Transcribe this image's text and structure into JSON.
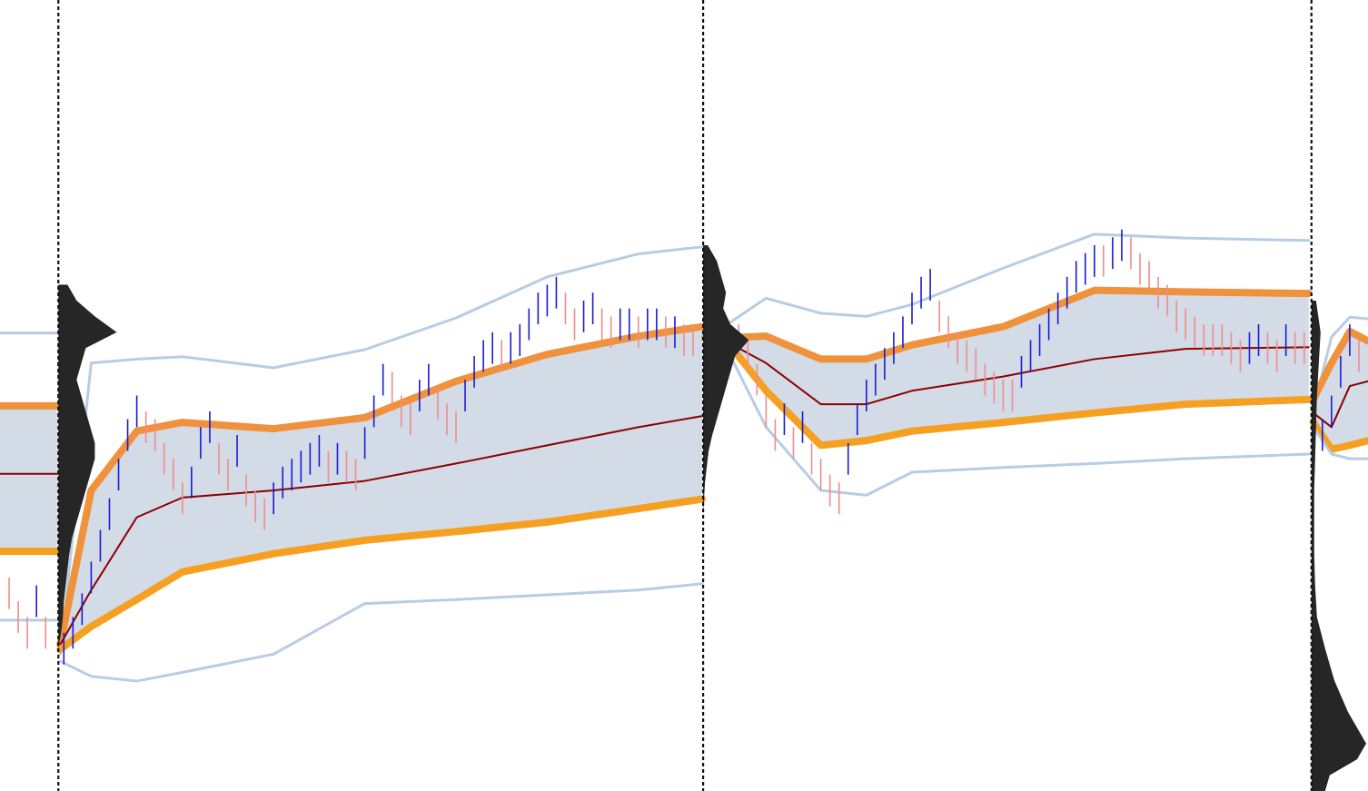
{
  "chart_data": {
    "type": "band",
    "xlim": [
      0,
      150
    ],
    "ylim": [
      0,
      100
    ],
    "session_breaks": [
      6.4,
      77.1,
      143.8
    ],
    "x": [
      0,
      6.3,
      6.4,
      6.6,
      10,
      15,
      20,
      30,
      40,
      50,
      60,
      70,
      77,
      77.1,
      77.3,
      80,
      84,
      90,
      95,
      100,
      110,
      120,
      130,
      143.5,
      143.8,
      144,
      146,
      148,
      150
    ],
    "fill_color": "#d3dbe6",
    "series": [
      {
        "color": "#b8cce4",
        "width": 3,
        "values": [
          57.9,
          57.9,
          null,
          17.3,
          54.1,
          54.6,
          54.9,
          53.5,
          55.8,
          59.8,
          65,
          67.9,
          68.8,
          null,
          58.7,
          59.2,
          62.3,
          60.4,
          60,
          61.5,
          66.1,
          70.4,
          69.9,
          69.6,
          null,
          48.2,
          57.4,
          59.9,
          59.7
        ]
      },
      {
        "color": "#f0913c",
        "width": 8,
        "values": [
          48.7,
          48.7,
          null,
          18.5,
          38,
          45.5,
          46.6,
          45.8,
          47.2,
          51.8,
          55.2,
          57.5,
          58.7,
          null,
          57.3,
          57.3,
          57.5,
          54.6,
          54.6,
          56.4,
          58.7,
          63.3,
          63.1,
          62.9,
          null,
          49.5,
          54.1,
          58.1,
          56.9
        ]
      },
      {
        "color": "#8b0000",
        "width": 2,
        "values": [
          40.1,
          40.1,
          null,
          18.5,
          25.4,
          34.6,
          37.1,
          38,
          39.2,
          41.4,
          43.7,
          46,
          47.4,
          null,
          57.3,
          56.6,
          54.1,
          48.9,
          48.9,
          50.6,
          52.4,
          54.6,
          55.9,
          56.1,
          null,
          47.8,
          46,
          51.2,
          51.8
        ]
      },
      {
        "color": "#f5a020",
        "width": 8,
        "values": [
          30.3,
          30.3,
          null,
          17.9,
          20.8,
          24.2,
          27.7,
          30,
          31.7,
          32.8,
          34,
          35.7,
          36.9,
          null,
          57.3,
          56.4,
          50.6,
          43.7,
          44.3,
          45.5,
          46.6,
          47.8,
          48.9,
          49.5,
          null,
          46.6,
          43.2,
          43.7,
          44.3
        ]
      },
      {
        "color": "#b8cce4",
        "width": 3,
        "values": [
          21.6,
          21.6,
          null,
          16.4,
          14.5,
          13.9,
          15,
          17.3,
          23.7,
          24.2,
          24.8,
          25.4,
          26.2,
          null,
          57.3,
          55.2,
          46,
          38,
          37.4,
          40.3,
          40.9,
          41.4,
          42,
          42.6,
          null,
          46,
          42.6,
          42,
          42
        ]
      }
    ],
    "price_bars": [
      {
        "color": "#1a1ad6",
        "x": [
          4,
          7,
          8,
          9,
          10,
          11,
          12,
          13,
          14,
          15,
          21,
          22,
          23,
          26,
          30,
          31,
          32,
          33,
          34,
          35,
          37,
          40,
          41,
          42,
          46,
          47,
          51,
          52,
          53,
          54,
          56,
          57,
          58,
          59,
          60,
          61,
          64,
          65,
          68,
          69,
          71,
          72,
          74,
          79,
          86,
          88,
          93,
          94,
          95,
          96,
          97,
          98,
          99,
          100,
          101,
          102,
          112,
          113,
          114,
          115,
          116,
          117,
          118,
          119,
          120,
          122,
          123,
          137,
          138,
          141,
          145,
          146,
          147,
          148
        ],
        "high": [
          26,
          20,
          22,
          25,
          29,
          33,
          37,
          42,
          47,
          50,
          41,
          46,
          48,
          45,
          39,
          41,
          42,
          43,
          44,
          45,
          44,
          46,
          50,
          54,
          52,
          54,
          52,
          55,
          57,
          58,
          58,
          59,
          61,
          63,
          64,
          65,
          62,
          63,
          61,
          61,
          61,
          61,
          60,
          60,
          49,
          48,
          44,
          49,
          52,
          54,
          56,
          58,
          60,
          63,
          65,
          66,
          55,
          57,
          59,
          61,
          63,
          65,
          67,
          68,
          69,
          70,
          71,
          58,
          59,
          59,
          47,
          50,
          55,
          59
        ],
        "low": [
          22,
          16,
          18,
          21,
          25,
          29,
          33,
          38,
          43,
          46,
          37,
          42,
          44,
          41,
          35,
          37,
          38,
          39,
          40,
          41,
          40,
          42,
          46,
          50,
          48,
          50,
          48,
          51,
          53,
          54,
          54,
          55,
          57,
          59,
          60,
          61,
          58,
          59,
          57,
          57,
          57,
          57,
          56,
          56,
          45,
          44,
          40,
          45,
          48,
          50,
          52,
          54,
          56,
          59,
          61,
          62,
          51,
          53,
          55,
          57,
          59,
          61,
          63,
          64,
          65,
          66,
          67,
          54,
          55,
          55,
          43,
          46,
          51,
          55
        ]
      },
      {
        "color": "#f08c8c",
        "x": [
          1,
          2,
          3,
          5,
          16,
          17,
          18,
          19,
          20,
          24,
          25,
          27,
          28,
          29,
          36,
          38,
          39,
          43,
          44,
          45,
          48,
          49,
          50,
          55,
          62,
          63,
          66,
          67,
          70,
          73,
          75,
          76,
          78,
          80,
          81,
          82,
          83,
          84,
          85,
          87,
          89,
          90,
          91,
          92,
          103,
          104,
          105,
          106,
          107,
          108,
          109,
          110,
          111,
          121,
          124,
          125,
          126,
          127,
          128,
          129,
          130,
          131,
          132,
          133,
          134,
          135,
          136,
          139,
          140,
          142,
          143,
          149
        ],
        "high": [
          27,
          24,
          22,
          22,
          48,
          47,
          44,
          42,
          39,
          44,
          42,
          40,
          38,
          37,
          43,
          43,
          42,
          53,
          50,
          49,
          51,
          49,
          48,
          57,
          63,
          61,
          61,
          60,
          60,
          60,
          59,
          59,
          59,
          59,
          59,
          57,
          54,
          50,
          47,
          46,
          44,
          42,
          40,
          39,
          62,
          60,
          58,
          57,
          56,
          54,
          53,
          52,
          52,
          69,
          70,
          68,
          67,
          65,
          64,
          62,
          61,
          60,
          59,
          59,
          59,
          58,
          57,
          58,
          57,
          58,
          58,
          57
        ],
        "low": [
          23,
          20,
          18,
          18,
          44,
          43,
          40,
          38,
          35,
          40,
          38,
          36,
          34,
          33,
          39,
          39,
          38,
          49,
          46,
          45,
          47,
          45,
          44,
          53,
          59,
          57,
          57,
          56,
          56,
          56,
          55,
          55,
          55,
          55,
          55,
          53,
          50,
          46,
          43,
          42,
          40,
          38,
          36,
          35,
          58,
          56,
          54,
          53,
          52,
          50,
          49,
          48,
          48,
          65,
          66,
          64,
          63,
          61,
          60,
          58,
          57,
          56,
          55,
          55,
          55,
          54,
          53,
          54,
          53,
          54,
          54,
          53
        ]
      }
    ],
    "profiles": [
      {
        "x": 6.4,
        "color": "#262626",
        "y": [
          64,
          62,
          60,
          58,
          56,
          54,
          52,
          50,
          48,
          46,
          44,
          42,
          40,
          38,
          36,
          34,
          32,
          30,
          28,
          26,
          24,
          22,
          20,
          18
        ],
        "w": [
          1,
          2,
          4,
          6.4,
          3,
          2.5,
          2,
          2.5,
          3,
          3.5,
          4,
          4,
          3.5,
          3,
          2.5,
          2,
          1.5,
          1.2,
          1,
          0.8,
          0.6,
          0.5,
          0.3,
          0
        ]
      },
      {
        "x": 77.1,
        "color": "#262626",
        "y": [
          69,
          67,
          65,
          63,
          61,
          59,
          57,
          55,
          53,
          51,
          49,
          47,
          45,
          43,
          41,
          39,
          37,
          35
        ],
        "w": [
          0.5,
          1.5,
          2,
          2.5,
          2.2,
          3,
          5,
          3.5,
          3,
          2.5,
          2,
          1.5,
          1,
          0.6,
          0.4,
          0.2,
          0.1,
          0
        ]
      },
      {
        "x": 143.8,
        "color": "#262626",
        "y": [
          62,
          58,
          54,
          50,
          46,
          42,
          38,
          34,
          30,
          26,
          22,
          18,
          14,
          10,
          6,
          4,
          2,
          0
        ],
        "w": [
          0.5,
          1,
          0.8,
          0.6,
          0.5,
          0.4,
          0.3,
          0.3,
          0.3,
          0.4,
          0.6,
          1.5,
          2.5,
          4,
          6,
          5,
          2,
          1.5
        ]
      }
    ]
  }
}
